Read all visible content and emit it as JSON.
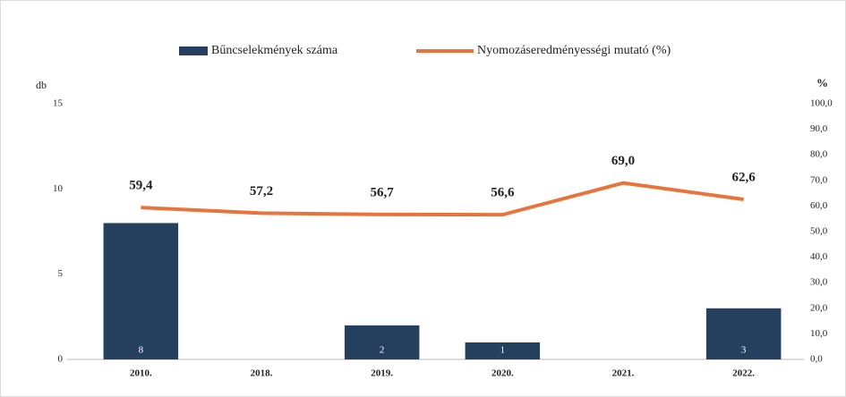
{
  "chart_data": {
    "type": "bar-line",
    "y_label": "db",
    "y2_label": "%",
    "categories": [
      "2010.",
      "2018.",
      "2019.",
      "2020.",
      "2021.",
      "2022."
    ],
    "series": [
      {
        "name": "Bűncselekmények száma",
        "type": "bar",
        "color": "#253f5e",
        "values": [
          8,
          null,
          2,
          1,
          null,
          3
        ]
      },
      {
        "name": "Nyomozáseredményességi mutató (%)",
        "type": "line",
        "axis": "y2",
        "color": "#e8743b",
        "values": [
          59.4,
          57.2,
          56.7,
          56.6,
          69.0,
          62.6
        ],
        "value_labels": [
          "59,4",
          "57,2",
          "56,7",
          "56,6",
          "69,0",
          "62,6"
        ]
      }
    ],
    "ylim": [
      0,
      15
    ],
    "yticks": [
      0,
      5,
      10,
      15
    ],
    "y2lim": [
      0,
      100
    ],
    "y2ticks": [
      {
        "value": 0,
        "label": "0,0"
      },
      {
        "value": 10,
        "label": "10,0"
      },
      {
        "value": 20,
        "label": "20,0"
      },
      {
        "value": 30,
        "label": "30,0"
      },
      {
        "value": 40,
        "label": "40,0"
      },
      {
        "value": 50,
        "label": "50,0"
      },
      {
        "value": 60,
        "label": "60,0"
      },
      {
        "value": 70,
        "label": "70,0"
      },
      {
        "value": 80,
        "label": "80,0"
      },
      {
        "value": 90,
        "label": "90,0"
      },
      {
        "value": 100,
        "label": "100,0"
      }
    ]
  }
}
